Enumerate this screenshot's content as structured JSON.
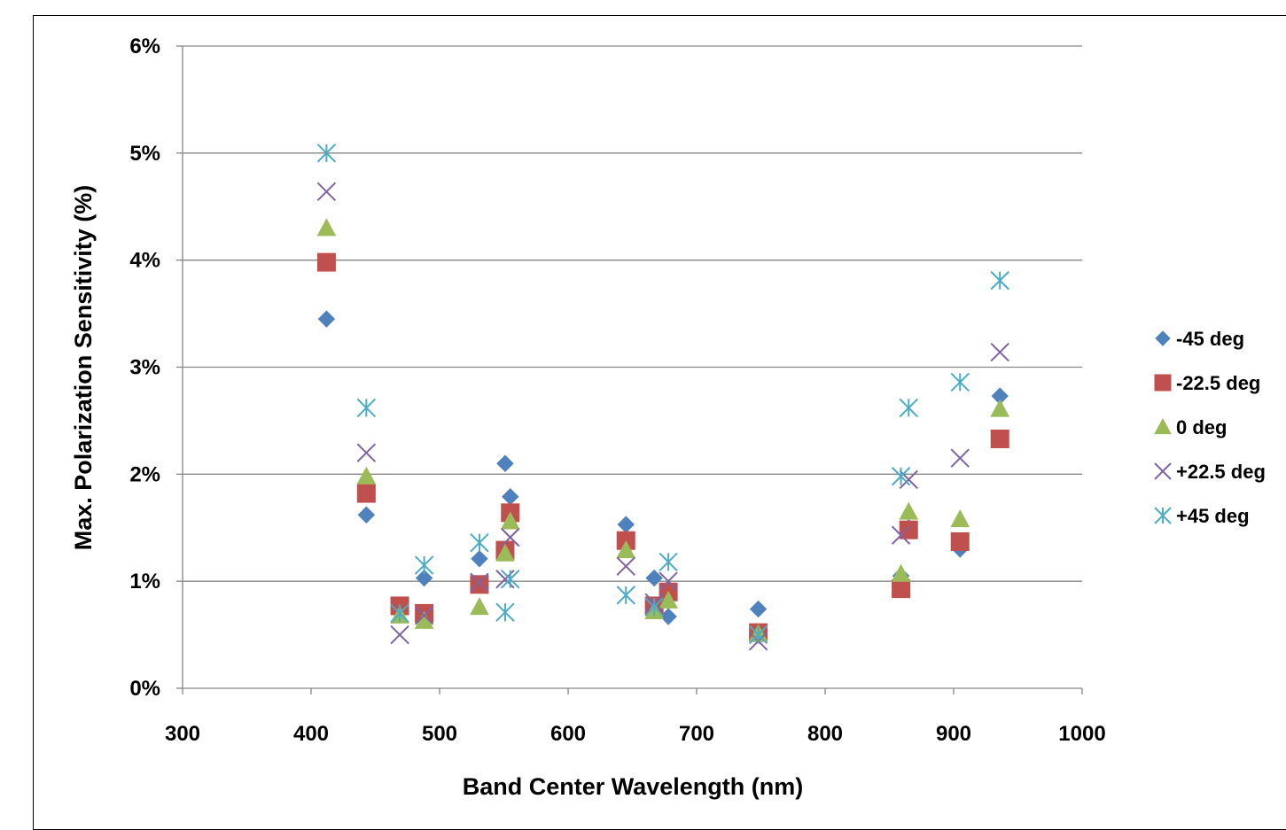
{
  "chart_data": {
    "type": "scatter",
    "xlabel": "Band Center Wavelength (nm)",
    "ylabel": "Max. Polarization Sensitivity (%)",
    "xlim": [
      300,
      1000
    ],
    "ylim": [
      0,
      6
    ],
    "x_ticks": [
      300,
      400,
      500,
      600,
      700,
      800,
      900,
      1000
    ],
    "y_ticks": [
      0,
      1,
      2,
      3,
      4,
      5,
      6
    ],
    "y_tick_labels": [
      "0%",
      "1%",
      "2%",
      "3%",
      "4%",
      "5%",
      "6%"
    ],
    "grid": "horizontal",
    "legend_position": "right",
    "series": [
      {
        "name": "-45 deg",
        "marker": "diamond",
        "color": "#4f81bd",
        "points": [
          [
            412,
            3.45
          ],
          [
            443,
            1.62
          ],
          [
            469,
            0.78
          ],
          [
            488,
            1.03
          ],
          [
            531,
            1.21
          ],
          [
            551,
            2.1
          ],
          [
            555,
            1.79
          ],
          [
            645,
            1.53
          ],
          [
            667,
            1.03
          ],
          [
            678,
            0.67
          ],
          [
            748,
            0.74
          ],
          [
            859,
            1.05
          ],
          [
            865,
            1.5
          ],
          [
            905,
            1.3
          ],
          [
            936,
            2.73
          ]
        ]
      },
      {
        "name": "-22.5 deg",
        "marker": "square",
        "color": "#c0504d",
        "points": [
          [
            412,
            3.98
          ],
          [
            443,
            1.82
          ],
          [
            469,
            0.77
          ],
          [
            488,
            0.7
          ],
          [
            531,
            0.97
          ],
          [
            551,
            1.29
          ],
          [
            555,
            1.64
          ],
          [
            645,
            1.38
          ],
          [
            667,
            0.77
          ],
          [
            678,
            0.9
          ],
          [
            748,
            0.52
          ],
          [
            859,
            0.93
          ],
          [
            865,
            1.48
          ],
          [
            905,
            1.37
          ],
          [
            936,
            2.33
          ]
        ]
      },
      {
        "name": "0 deg",
        "marker": "triangle",
        "color": "#9bbb59",
        "points": [
          [
            412,
            4.3
          ],
          [
            443,
            1.98
          ],
          [
            469,
            0.68
          ],
          [
            488,
            0.63
          ],
          [
            531,
            0.76
          ],
          [
            551,
            1.26
          ],
          [
            555,
            1.56
          ],
          [
            645,
            1.29
          ],
          [
            667,
            0.72
          ],
          [
            678,
            0.82
          ],
          [
            748,
            0.51
          ],
          [
            859,
            1.07
          ],
          [
            865,
            1.65
          ],
          [
            905,
            1.58
          ],
          [
            936,
            2.61
          ]
        ]
      },
      {
        "name": "+22.5 deg",
        "marker": "x",
        "color": "#8064a2",
        "points": [
          [
            412,
            4.64
          ],
          [
            443,
            2.2
          ],
          [
            469,
            0.5
          ],
          [
            488,
            0.68
          ],
          [
            531,
            0.99
          ],
          [
            551,
            1.02
          ],
          [
            555,
            1.41
          ],
          [
            645,
            1.14
          ],
          [
            667,
            0.8
          ],
          [
            678,
            1.0
          ],
          [
            748,
            0.44
          ],
          [
            859,
            1.43
          ],
          [
            865,
            1.95
          ],
          [
            905,
            2.15
          ],
          [
            936,
            3.14
          ]
        ]
      },
      {
        "name": "+45 deg",
        "marker": "star",
        "color": "#4bacc6",
        "points": [
          [
            412,
            5.0
          ],
          [
            443,
            2.62
          ],
          [
            469,
            0.7
          ],
          [
            488,
            1.15
          ],
          [
            531,
            1.36
          ],
          [
            551,
            0.71
          ],
          [
            555,
            1.02
          ],
          [
            645,
            0.87
          ],
          [
            667,
            0.76
          ],
          [
            678,
            1.18
          ],
          [
            748,
            0.5
          ],
          [
            859,
            1.98
          ],
          [
            865,
            2.62
          ],
          [
            905,
            2.86
          ],
          [
            936,
            3.81
          ]
        ]
      }
    ]
  }
}
